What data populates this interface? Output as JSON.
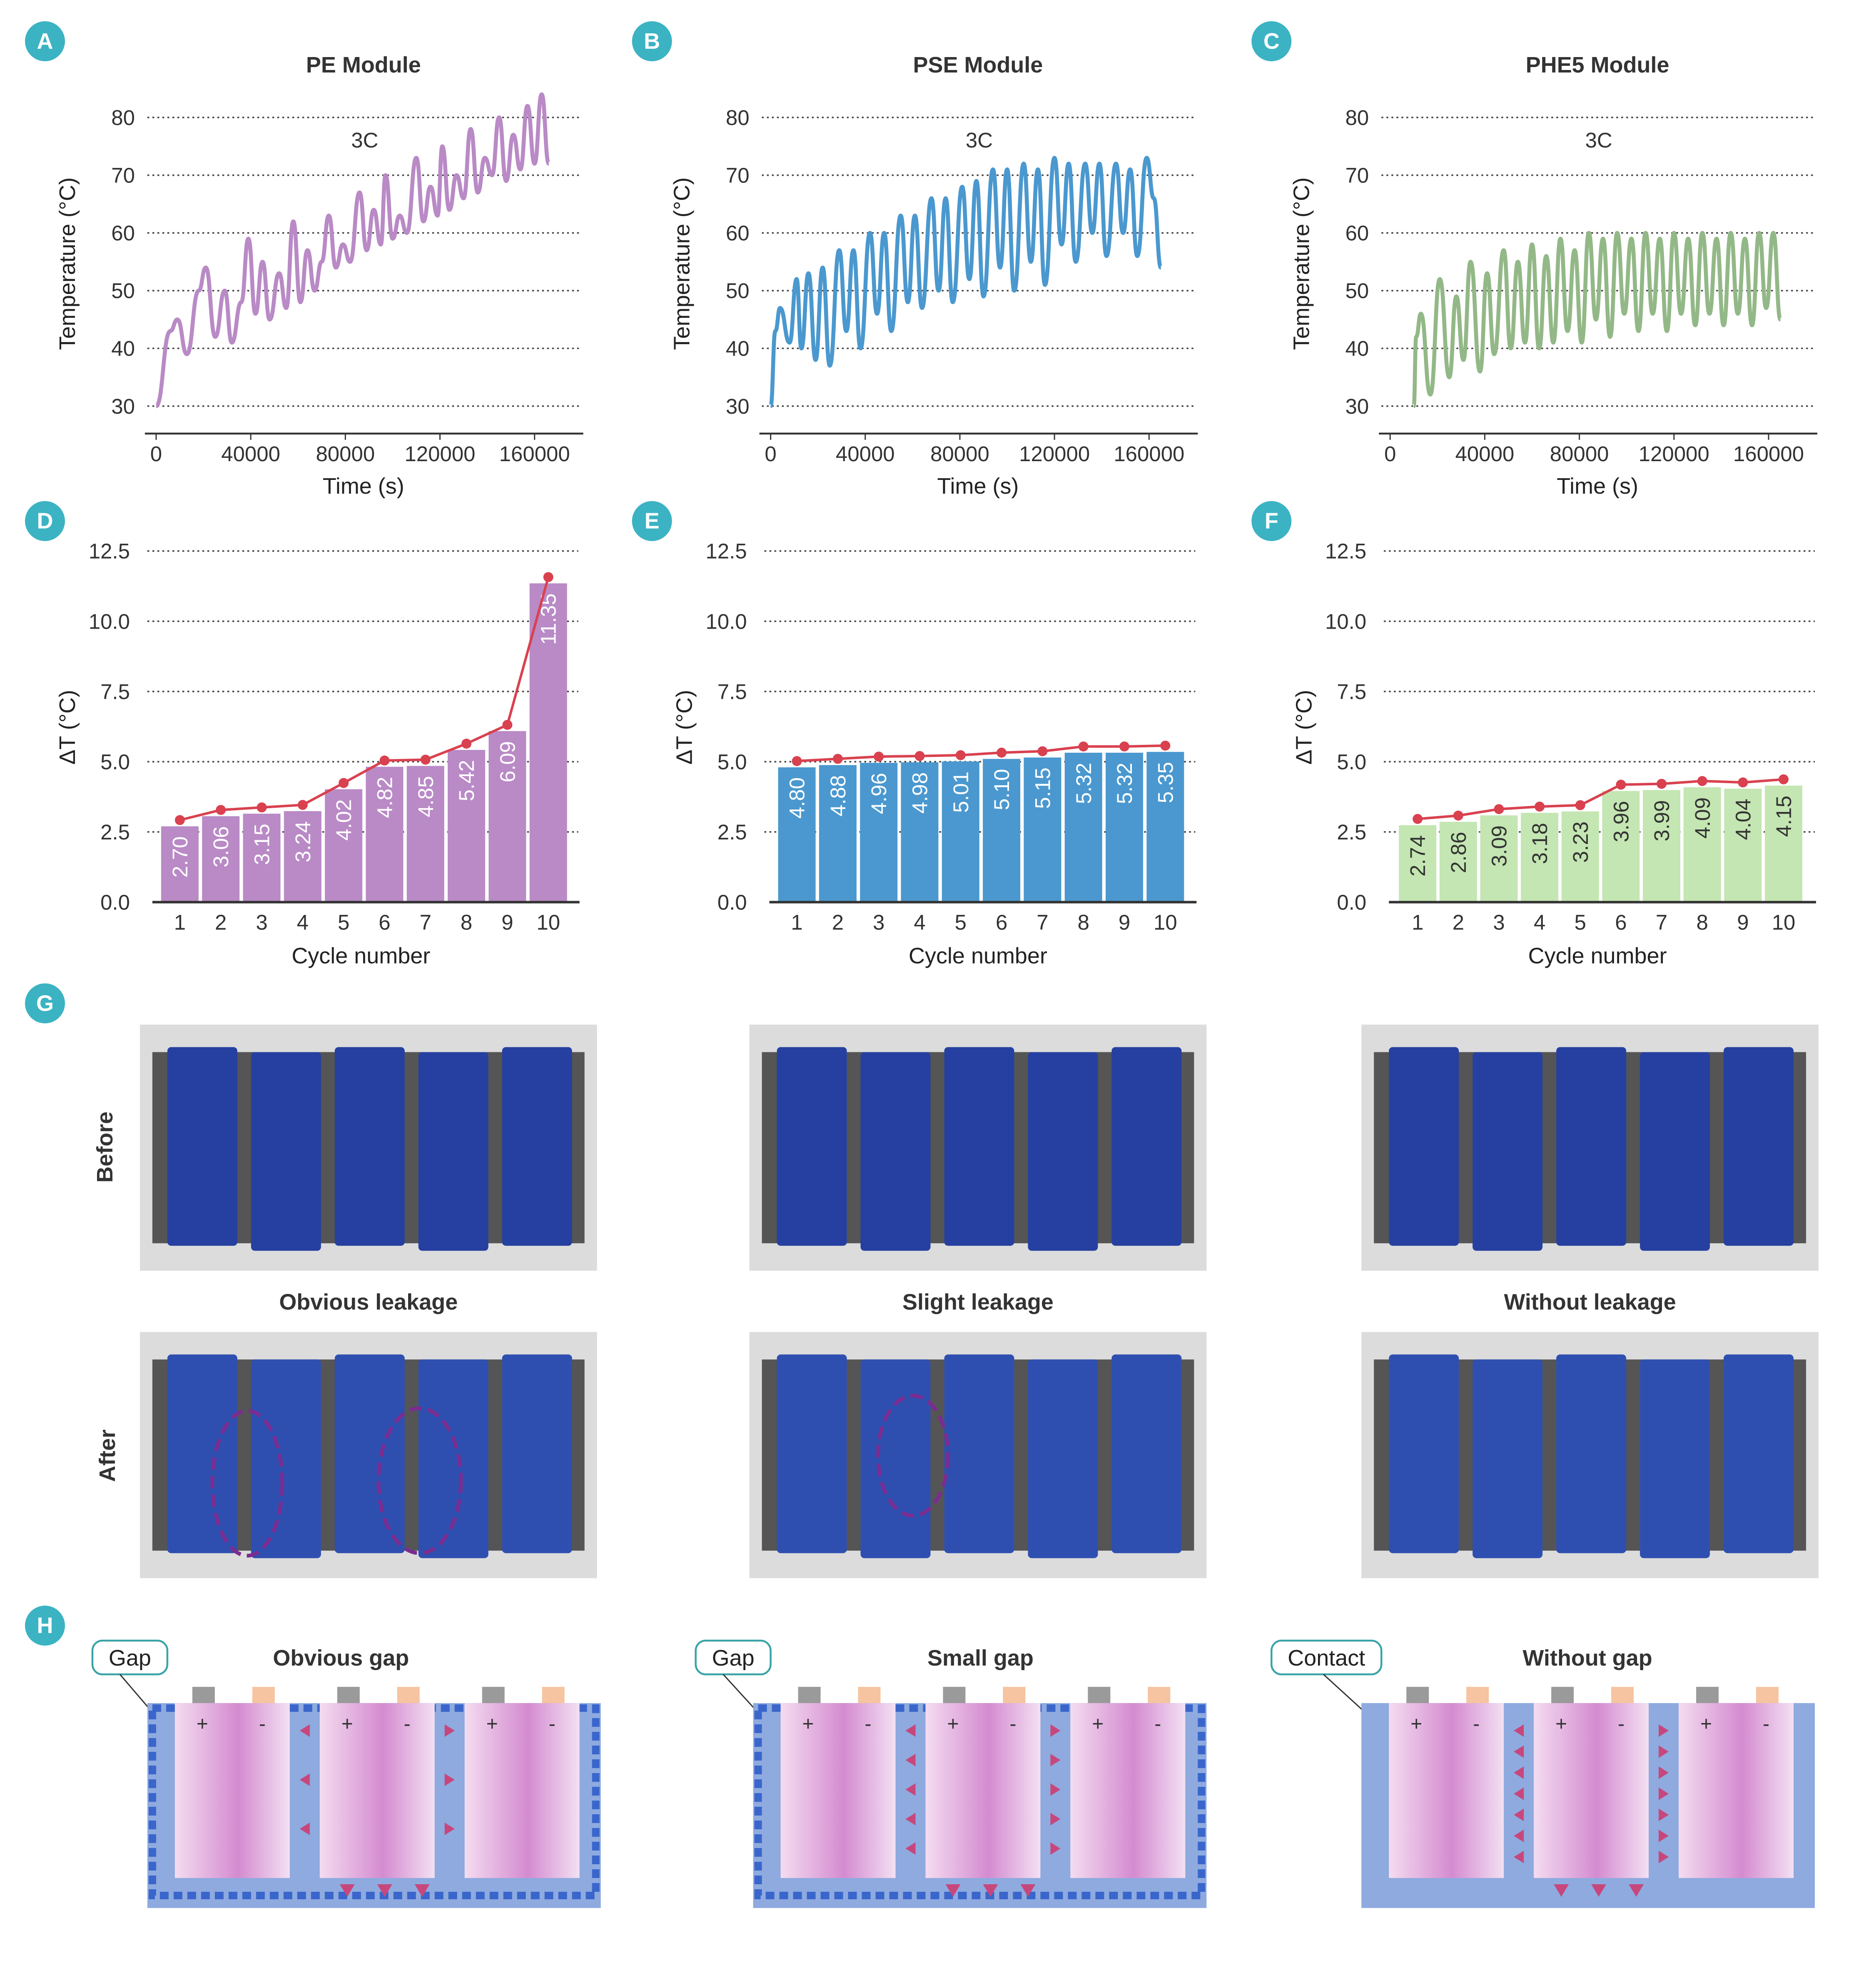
{
  "panel_letters": [
    "A",
    "B",
    "C",
    "D",
    "E",
    "F",
    "G",
    "H"
  ],
  "colors": {
    "pe": "#b98ac6",
    "pse": "#4a98cf",
    "phe5": "#93b887",
    "phe5_bar": "#c4e6b2",
    "trend": "#d9414f",
    "badge": "#3bb3c3"
  },
  "chart_data": [
    {
      "type": "line",
      "title": "PE Module",
      "annotation": "3C",
      "xlabel": "Time (s)",
      "ylabel": "Temperature (°C)",
      "xticks": [
        "0",
        "40000",
        "80000",
        "120000",
        "160000"
      ],
      "yticks": [
        "30",
        "40",
        "50",
        "60",
        "70",
        "80"
      ],
      "xlim": [
        0,
        170000
      ],
      "ylim": [
        30,
        80
      ],
      "grid": true,
      "color": "#b98ac6",
      "points": [
        [
          0,
          30
        ],
        [
          6000,
          43
        ],
        [
          9000,
          45
        ],
        [
          13000,
          39
        ],
        [
          18000,
          50
        ],
        [
          21000,
          54
        ],
        [
          25000,
          42
        ],
        [
          29000,
          50
        ],
        [
          32000,
          41
        ],
        [
          36000,
          48
        ],
        [
          39000,
          59
        ],
        [
          42000,
          46
        ],
        [
          45000,
          55
        ],
        [
          48000,
          45
        ],
        [
          52000,
          53
        ],
        [
          55000,
          47
        ],
        [
          58000,
          62
        ],
        [
          61000,
          48
        ],
        [
          64000,
          57
        ],
        [
          67000,
          50
        ],
        [
          70000,
          55
        ],
        [
          73000,
          63
        ],
        [
          76000,
          54
        ],
        [
          79000,
          58
        ],
        [
          82000,
          55
        ],
        [
          86000,
          67
        ],
        [
          89000,
          57
        ],
        [
          92000,
          64
        ],
        [
          95000,
          58
        ],
        [
          97000,
          70
        ],
        [
          100000,
          59
        ],
        [
          103000,
          63
        ],
        [
          106000,
          60
        ],
        [
          110000,
          73
        ],
        [
          113000,
          62
        ],
        [
          116000,
          68
        ],
        [
          119000,
          63
        ],
        [
          121000,
          75
        ],
        [
          124000,
          64
        ],
        [
          127000,
          70
        ],
        [
          130000,
          66
        ],
        [
          133000,
          78
        ],
        [
          136000,
          67
        ],
        [
          139000,
          73
        ],
        [
          142000,
          70
        ],
        [
          145000,
          80
        ],
        [
          148000,
          69
        ],
        [
          151000,
          77
        ],
        [
          154000,
          71
        ],
        [
          157000,
          82
        ],
        [
          160000,
          72
        ],
        [
          163000,
          84
        ],
        [
          166000,
          72
        ]
      ]
    },
    {
      "type": "line",
      "title": "PSE Module",
      "annotation": "3C",
      "xlabel": "Time (s)",
      "ylabel": "Temperature (°C)",
      "xticks": [
        "0",
        "40000",
        "80000",
        "120000",
        "160000"
      ],
      "yticks": [
        "30",
        "40",
        "50",
        "60",
        "70",
        "80"
      ],
      "xlim": [
        0,
        170000
      ],
      "ylim": [
        30,
        80
      ],
      "grid": true,
      "color": "#4a98cf",
      "points": [
        [
          0,
          30
        ],
        [
          2000,
          43
        ],
        [
          4000,
          47
        ],
        [
          8000,
          41
        ],
        [
          11000,
          52
        ],
        [
          13000,
          40
        ],
        [
          16000,
          53
        ],
        [
          19000,
          38
        ],
        [
          22000,
          54
        ],
        [
          25000,
          37
        ],
        [
          29000,
          57
        ],
        [
          32000,
          43
        ],
        [
          35000,
          57
        ],
        [
          38000,
          40
        ],
        [
          42000,
          60
        ],
        [
          45000,
          46
        ],
        [
          48000,
          60
        ],
        [
          51000,
          43
        ],
        [
          55000,
          63
        ],
        [
          58000,
          48
        ],
        [
          61000,
          63
        ],
        [
          64000,
          47
        ],
        [
          68000,
          66
        ],
        [
          71000,
          50
        ],
        [
          74000,
          66
        ],
        [
          77000,
          48
        ],
        [
          81000,
          68
        ],
        [
          84000,
          52
        ],
        [
          87000,
          69
        ],
        [
          90000,
          49
        ],
        [
          94000,
          71
        ],
        [
          97000,
          54
        ],
        [
          100000,
          71
        ],
        [
          103000,
          50
        ],
        [
          107000,
          72
        ],
        [
          110000,
          55
        ],
        [
          113000,
          71
        ],
        [
          116000,
          51
        ],
        [
          120000,
          73
        ],
        [
          123000,
          58
        ],
        [
          126000,
          72
        ],
        [
          129000,
          55
        ],
        [
          133000,
          72
        ],
        [
          136000,
          60
        ],
        [
          139000,
          72
        ],
        [
          142000,
          56
        ],
        [
          146000,
          72
        ],
        [
          149000,
          60
        ],
        [
          152000,
          71
        ],
        [
          155000,
          56
        ],
        [
          159000,
          73
        ],
        [
          162000,
          66
        ],
        [
          165000,
          54
        ]
      ]
    },
    {
      "type": "line",
      "title": "PHE5 Module",
      "annotation": "3C",
      "xlabel": "Time (s)",
      "ylabel": "Temperature (°C)",
      "xticks": [
        "0",
        "40000",
        "80000",
        "120000",
        "160000"
      ],
      "yticks": [
        "30",
        "40",
        "50",
        "60",
        "70",
        "80"
      ],
      "xlim": [
        0,
        170000
      ],
      "ylim": [
        30,
        80
      ],
      "grid": true,
      "color": "#93b887",
      "points": [
        [
          10000,
          30
        ],
        [
          11000,
          42
        ],
        [
          13000,
          46
        ],
        [
          17000,
          32
        ],
        [
          21000,
          52
        ],
        [
          25000,
          35
        ],
        [
          28000,
          49
        ],
        [
          31000,
          38
        ],
        [
          34000,
          55
        ],
        [
          38000,
          36
        ],
        [
          41000,
          53
        ],
        [
          44000,
          39
        ],
        [
          48000,
          57
        ],
        [
          51000,
          40
        ],
        [
          54000,
          55
        ],
        [
          57000,
          41
        ],
        [
          60000,
          58
        ],
        [
          63000,
          40
        ],
        [
          66000,
          56
        ],
        [
          69000,
          41
        ],
        [
          72000,
          59
        ],
        [
          75000,
          43
        ],
        [
          78000,
          57
        ],
        [
          81000,
          41
        ],
        [
          84000,
          60
        ],
        [
          87000,
          45
        ],
        [
          90000,
          59
        ],
        [
          93000,
          42
        ],
        [
          96000,
          60
        ],
        [
          99000,
          46
        ],
        [
          102000,
          59
        ],
        [
          105000,
          43
        ],
        [
          108000,
          60
        ],
        [
          111000,
          46
        ],
        [
          114000,
          59
        ],
        [
          117000,
          43
        ],
        [
          120000,
          60
        ],
        [
          123000,
          46
        ],
        [
          126000,
          59
        ],
        [
          129000,
          44
        ],
        [
          132000,
          60
        ],
        [
          135000,
          46
        ],
        [
          138000,
          59
        ],
        [
          141000,
          44
        ],
        [
          144000,
          60
        ],
        [
          147000,
          46
        ],
        [
          150000,
          59
        ],
        [
          153000,
          44
        ],
        [
          156000,
          60
        ],
        [
          159000,
          47
        ],
        [
          162000,
          60
        ],
        [
          165000,
          45
        ]
      ]
    },
    {
      "type": "bar",
      "xlabel": "Cycle number",
      "ylabel": "ΔT (°C)",
      "categories": [
        "1",
        "2",
        "3",
        "4",
        "5",
        "6",
        "7",
        "8",
        "9",
        "10"
      ],
      "values": [
        2.7,
        3.06,
        3.15,
        3.24,
        4.02,
        4.82,
        4.85,
        5.42,
        6.09,
        11.35
      ],
      "labels": [
        "2.70",
        "3.06",
        "3.15",
        "3.24",
        "4.02",
        "4.82",
        "4.85",
        "5.42",
        "6.09",
        "11.35"
      ],
      "yticks": [
        "0.0",
        "2.5",
        "5.0",
        "7.5",
        "10.0",
        "12.5"
      ],
      "ylim": [
        0,
        12.5
      ],
      "grid": true,
      "color": "#b98ac6",
      "label_color": "#ffffff"
    },
    {
      "type": "bar",
      "xlabel": "Cycle number",
      "ylabel": "ΔT (°C)",
      "categories": [
        "1",
        "2",
        "3",
        "4",
        "5",
        "6",
        "7",
        "8",
        "9",
        "10"
      ],
      "values": [
        4.8,
        4.88,
        4.96,
        4.98,
        5.01,
        5.1,
        5.15,
        5.32,
        5.32,
        5.35
      ],
      "labels": [
        "4.80",
        "4.88",
        "4.96",
        "4.98",
        "5.01",
        "5.10",
        "5.15",
        "5.32",
        "5.32",
        "5.35"
      ],
      "yticks": [
        "0.0",
        "2.5",
        "5.0",
        "7.5",
        "10.0",
        "12.5"
      ],
      "ylim": [
        0,
        12.5
      ],
      "grid": true,
      "color": "#4a98cf",
      "label_color": "#ffffff"
    },
    {
      "type": "bar",
      "xlabel": "Cycle number",
      "ylabel": "ΔT (°C)",
      "categories": [
        "1",
        "2",
        "3",
        "4",
        "5",
        "6",
        "7",
        "8",
        "9",
        "10"
      ],
      "values": [
        2.74,
        2.86,
        3.09,
        3.18,
        3.23,
        3.96,
        3.99,
        4.09,
        4.04,
        4.15
      ],
      "labels": [
        "2.74",
        "2.86",
        "3.09",
        "3.18",
        "3.23",
        "3.96",
        "3.99",
        "4.09",
        "4.04",
        "4.15"
      ],
      "yticks": [
        "0.0",
        "2.5",
        "5.0",
        "7.5",
        "10.0",
        "12.5"
      ],
      "ylim": [
        0,
        12.5
      ],
      "grid": true,
      "color": "#c4e6b2",
      "label_color": "#333333"
    }
  ],
  "photos": {
    "row_labels": [
      "Before",
      "After"
    ],
    "captions": [
      "Obvious leakage",
      "Slight leakage",
      "Without leakage"
    ]
  },
  "diagrams": {
    "titles": [
      "Obvious gap",
      "Small gap",
      "Without gap"
    ],
    "callouts": [
      "Gap",
      "Gap",
      "Contact"
    ],
    "plus": "+",
    "minus": "-"
  }
}
